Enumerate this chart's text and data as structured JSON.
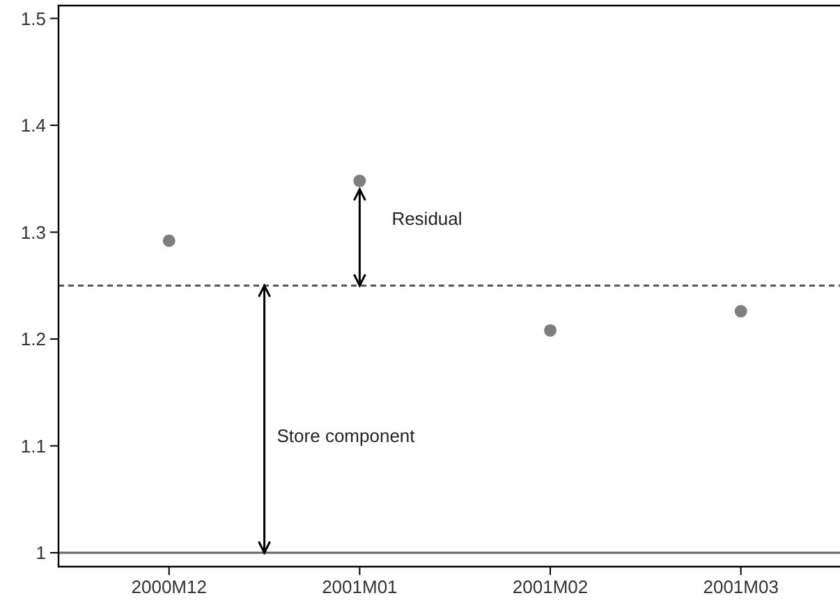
{
  "chart_data": {
    "type": "scatter",
    "categories": [
      "2000M12",
      "2001M01",
      "2001M02",
      "2001M03"
    ],
    "series": [
      {
        "color": "#7f7f7f",
        "values": [
          1.292,
          1.348,
          1.208,
          1.226
        ]
      }
    ],
    "marker": "circle",
    "ylim": [
      0.987,
      1.512
    ],
    "yticks": [
      1,
      1.1,
      1.2,
      1.3,
      1.4,
      1.5
    ],
    "grid": false,
    "ref_lines": [
      {
        "axis": "y",
        "value": 1.25,
        "color": "#555555",
        "line_style": "dashed"
      },
      {
        "axis": "y",
        "value": 1,
        "color": "#666666",
        "line_style": "solid"
      }
    ],
    "annotations": [
      "Residual",
      "Store component"
    ]
  }
}
